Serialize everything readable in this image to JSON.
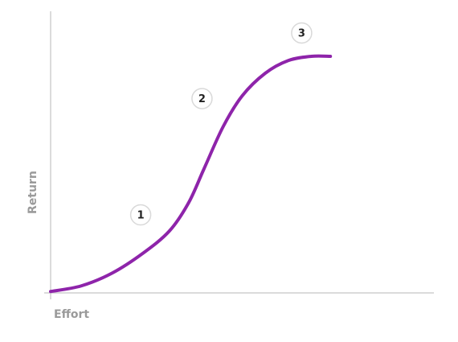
{
  "chart_data": {
    "type": "line",
    "xlabel": "Effort",
    "ylabel": "Return",
    "xlim": [
      0,
      100
    ],
    "ylim": [
      0,
      100
    ],
    "grid": false,
    "series": [
      {
        "color": "#8e24aa",
        "points": [
          [
            0,
            0.5
          ],
          [
            8,
            2.5
          ],
          [
            16,
            7
          ],
          [
            24,
            14
          ],
          [
            31,
            22
          ],
          [
            36,
            32
          ],
          [
            40,
            44
          ],
          [
            45,
            59
          ],
          [
            50,
            70
          ],
          [
            56,
            78
          ],
          [
            62,
            82.5
          ],
          [
            68,
            84
          ],
          [
            73,
            84
          ]
        ]
      }
    ],
    "annotations": [
      {
        "label": "1",
        "x": 23.5,
        "y": 27.7
      },
      {
        "label": "2",
        "x": 39.5,
        "y": 69
      },
      {
        "label": "3",
        "x": 65.5,
        "y": 92.3
      }
    ]
  }
}
